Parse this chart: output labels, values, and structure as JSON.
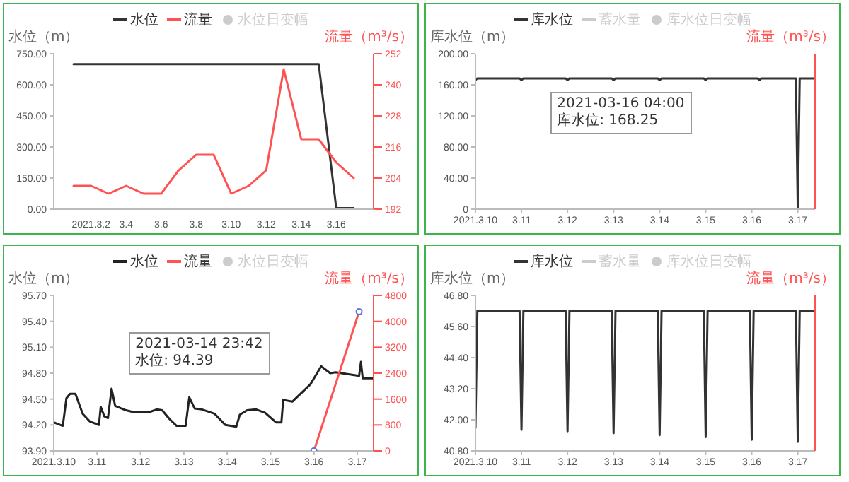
{
  "chart_data": [
    {
      "type": "line",
      "ylabel": "水位（m）",
      "y2label": "流量（m³/s）",
      "legend": "top",
      "categories": [
        null,
        "2021.3.2",
        null,
        "3.4",
        null,
        "3.6",
        null,
        "3.8",
        null,
        "3.10",
        null,
        "3.12",
        null,
        "3.14",
        null,
        "3.16",
        null
      ],
      "series": [
        {
          "name": "水位",
          "color": "#333333",
          "values": [
            700,
            700,
            700,
            700,
            700,
            700,
            700,
            700,
            700,
            700,
            700,
            700,
            700,
            700,
            700,
            5,
            5
          ]
        },
        {
          "name": "流量",
          "color": "#ff5252",
          "axis": "y2",
          "values": [
            201,
            201,
            198,
            201,
            198,
            198,
            207,
            213,
            213,
            198,
            201,
            207,
            246,
            219,
            219,
            210,
            204
          ]
        },
        {
          "name": "水位日变幅",
          "type": "scatter",
          "color": "#cccccc",
          "values": [
            null,
            null,
            null,
            null,
            null,
            null,
            null,
            null,
            null,
            null,
            null,
            null,
            null,
            null,
            null,
            null,
            null
          ]
        }
      ],
      "ylim": [
        0,
        750
      ],
      "yticks": [
        {
          "value": 0,
          "label": "0.00"
        },
        {
          "value": 150,
          "label": "150.00"
        },
        {
          "value": 300,
          "label": "300.00"
        },
        {
          "value": 450,
          "label": "450.00"
        },
        {
          "value": 600,
          "label": "600.00"
        },
        {
          "value": 750,
          "label": "750.00"
        }
      ],
      "y2lim": [
        192,
        252
      ],
      "y2ticks": [
        192,
        204,
        216,
        228,
        240,
        252
      ]
    },
    {
      "type": "line",
      "ylabel": "库水位（m）",
      "y2label": "流量（m³/s）",
      "legend": "top",
      "annotations": [
        "2021-03-16 04:00",
        "库水位: 168.25"
      ],
      "series": [
        {
          "name": "库水位",
          "color": "#333333",
          "x": [
            "2021-03-10T00:00",
            "2021-03-10T01:00",
            "2021-03-10T23:00",
            "2021-03-11T00:00",
            "2021-03-11T01:00",
            "2021-03-11T23:00",
            "2021-03-12T00:00",
            "2021-03-12T01:00",
            "2021-03-12T23:00",
            "2021-03-13T00:00",
            "2021-03-13T01:00",
            "2021-03-13T23:00",
            "2021-03-14T00:00",
            "2021-03-14T01:00",
            "2021-03-14T23:00",
            "2021-03-15T00:00",
            "2021-03-15T01:00",
            "2021-03-16T03:00",
            "2021-03-16T04:00",
            "2021-03-16T05:00",
            "2021-03-16T23:00",
            "2021-03-17T00:00",
            "2021-03-17T01:00",
            "2021-03-17T09:00"
          ],
          "values": [
            166,
            168.25,
            168.25,
            166,
            168.25,
            168.25,
            166,
            168.25,
            168.25,
            166,
            168.25,
            168.25,
            166,
            168.25,
            168.25,
            166,
            168.25,
            168.25,
            166,
            168.25,
            168.25,
            0,
            168.25,
            168.25
          ]
        },
        {
          "name": "蓄水量",
          "color": "#cccccc"
        },
        {
          "name": "库水位日变幅",
          "type": "scatter",
          "color": "#cccccc"
        }
      ],
      "xlim": [
        "2021-03-10T00:00",
        "2021-03-17T09:00"
      ],
      "xticks": [
        {
          "value": "2021-03-10",
          "label": "2021.3.10"
        },
        {
          "value": "2021-03-11",
          "label": "3.11"
        },
        {
          "value": "2021-03-12",
          "label": "3.12"
        },
        {
          "value": "2021-03-13",
          "label": "3.13"
        },
        {
          "value": "2021-03-14",
          "label": "3.14"
        },
        {
          "value": "2021-03-15",
          "label": "3.15"
        },
        {
          "value": "2021-03-16",
          "label": "3.16"
        },
        {
          "value": "2021-03-17",
          "label": "3.17"
        }
      ],
      "ylim": [
        0,
        200
      ],
      "yticks": [
        0,
        {
          "value": 40,
          "label": "40.00"
        },
        {
          "value": 80,
          "label": "80.00"
        },
        {
          "value": 120,
          "label": "120.00"
        },
        {
          "value": 160,
          "label": "160.00"
        },
        {
          "value": 200,
          "label": "200.00"
        }
      ]
    },
    {
      "type": "line",
      "ylabel": "水位（m）",
      "y2label": "流量（m³/s）",
      "legend": "top",
      "annotations": [
        "2021-03-14 23:42",
        "水位: 94.39"
      ],
      "series": [
        {
          "name": "水位",
          "color": "#222222",
          "x": [
            "2021-03-10T00:00",
            "2021-03-10T05:00",
            "2021-03-10T07:00",
            "2021-03-10T09:00",
            "2021-03-10T12:00",
            "2021-03-10T16:00",
            "2021-03-10T20:00",
            "2021-03-11T01:00",
            "2021-03-11T02:00",
            "2021-03-11T04:00",
            "2021-03-11T06:00",
            "2021-03-11T08:00",
            "2021-03-11T10:00",
            "2021-03-11T16:00",
            "2021-03-11T20:00",
            "2021-03-12T05:00",
            "2021-03-12T09:00",
            "2021-03-12T12:00",
            "2021-03-12T16:00",
            "2021-03-12T20:00",
            "2021-03-13T01:00",
            "2021-03-13T03:00",
            "2021-03-13T06:00",
            "2021-03-13T10:00",
            "2021-03-13T17:00",
            "2021-03-13T23:00",
            "2021-03-14T05:00",
            "2021-03-14T07:00",
            "2021-03-14T11:00",
            "2021-03-14T16:00",
            "2021-03-14T21:00",
            "2021-03-15T03:00",
            "2021-03-15T06:00",
            "2021-03-15T07:00",
            "2021-03-15T12:00",
            "2021-03-15T22:00",
            "2021-03-16T04:00",
            "2021-03-16T09:00",
            "2021-03-16T12:00",
            "2021-03-17T01:00",
            "2021-03-17T02:00",
            "2021-03-17T03:00",
            "2021-03-17T09:00"
          ],
          "values": [
            94.23,
            94.19,
            94.51,
            94.56,
            94.56,
            94.33,
            94.24,
            94.2,
            94.41,
            94.3,
            94.28,
            94.62,
            94.42,
            94.37,
            94.35,
            94.35,
            94.38,
            94.37,
            94.27,
            94.19,
            94.19,
            94.52,
            94.39,
            94.38,
            94.33,
            94.2,
            94.18,
            94.32,
            94.37,
            94.38,
            94.34,
            94.23,
            94.23,
            94.49,
            94.47,
            94.67,
            94.88,
            94.8,
            94.81,
            94.77,
            94.93,
            94.74,
            94.74
          ]
        },
        {
          "name": "流量",
          "color": "#ff5252",
          "axis": "y2",
          "marker": "circle",
          "x": [
            "2021-03-16T00:00",
            "2021-03-17T01:00"
          ],
          "values": [
            0,
            4300
          ]
        },
        {
          "name": "水位日变幅",
          "type": "scatter",
          "color": "#cccccc"
        }
      ],
      "xlim": [
        "2021-03-10T00:00",
        "2021-03-17T09:00"
      ],
      "xticks": [
        {
          "value": "2021-03-10",
          "label": "2021.3.10"
        },
        {
          "value": "2021-03-11",
          "label": "3.11"
        },
        {
          "value": "2021-03-12",
          "label": "3.12"
        },
        {
          "value": "2021-03-13",
          "label": "3.13"
        },
        {
          "value": "2021-03-14",
          "label": "3.14"
        },
        {
          "value": "2021-03-15",
          "label": "3.15"
        },
        {
          "value": "2021-03-16",
          "label": "3.16"
        },
        {
          "value": "2021-03-17",
          "label": "3.17"
        }
      ],
      "ylim": [
        93.9,
        95.7
      ],
      "yticks": [
        {
          "value": 93.9,
          "label": "93.90"
        },
        {
          "value": 94.2,
          "label": "94.20"
        },
        {
          "value": 94.5,
          "label": "94.50"
        },
        {
          "value": 94.8,
          "label": "94.80"
        },
        {
          "value": 95.1,
          "label": "95.10"
        },
        {
          "value": 95.4,
          "label": "95.40"
        },
        {
          "value": 95.7,
          "label": "95.70"
        }
      ],
      "y2lim": [
        0,
        4800
      ],
      "y2ticks": [
        0,
        800,
        1600,
        2400,
        3200,
        4000,
        4800
      ]
    },
    {
      "type": "line",
      "ylabel": "库水位（m）",
      "y2label": "流量（m³/s）",
      "legend": "top",
      "series": [
        {
          "name": "库水位",
          "color": "#333333",
          "x": [
            "2021-03-10T00:00",
            "2021-03-10T01:00",
            "2021-03-10T23:00",
            "2021-03-11T00:00",
            "2021-03-11T01:00",
            "2021-03-11T23:00",
            "2021-03-12T00:00",
            "2021-03-12T01:00",
            "2021-03-12T23:00",
            "2021-03-13T00:00",
            "2021-03-13T01:00",
            "2021-03-13T23:00",
            "2021-03-14T00:00",
            "2021-03-14T01:00",
            "2021-03-14T23:00",
            "2021-03-15T00:00",
            "2021-03-15T01:00",
            "2021-03-15T23:00",
            "2021-03-16T00:00",
            "2021-03-16T01:00",
            "2021-03-16T23:00",
            "2021-03-17T00:00",
            "2021-03-17T01:00",
            "2021-03-17T09:00"
          ],
          "values": [
            41.68,
            46.21,
            46.21,
            41.61,
            46.21,
            46.21,
            41.56,
            46.21,
            46.21,
            41.48,
            46.21,
            46.21,
            41.41,
            46.21,
            46.21,
            41.33,
            46.21,
            46.21,
            41.23,
            46.21,
            46.21,
            41.15,
            46.21,
            46.21
          ]
        },
        {
          "name": "蓄水量",
          "color": "#cccccc"
        },
        {
          "name": "库水位日变幅",
          "type": "scatter",
          "color": "#cccccc"
        }
      ],
      "xlim": [
        "2021-03-10T00:00",
        "2021-03-17T09:00"
      ],
      "xticks": [
        {
          "value": "2021-03-10",
          "label": "2021.3.10"
        },
        {
          "value": "2021-03-11",
          "label": "3.11"
        },
        {
          "value": "2021-03-12",
          "label": "3.12"
        },
        {
          "value": "2021-03-13",
          "label": "3.13"
        },
        {
          "value": "2021-03-14",
          "label": "3.14"
        },
        {
          "value": "2021-03-15",
          "label": "3.15"
        },
        {
          "value": "2021-03-16",
          "label": "3.16"
        },
        {
          "value": "2021-03-17",
          "label": "3.17"
        }
      ],
      "ylim": [
        40.8,
        46.8
      ],
      "yticks": [
        {
          "value": 40.8,
          "label": "40.80"
        },
        {
          "value": 42,
          "label": "42.00"
        },
        {
          "value": 43.2,
          "label": "43.20"
        },
        {
          "value": 44.4,
          "label": "44.40"
        },
        {
          "value": 45.6,
          "label": "45.60"
        },
        {
          "value": 46.8,
          "label": "46.80"
        }
      ]
    }
  ]
}
